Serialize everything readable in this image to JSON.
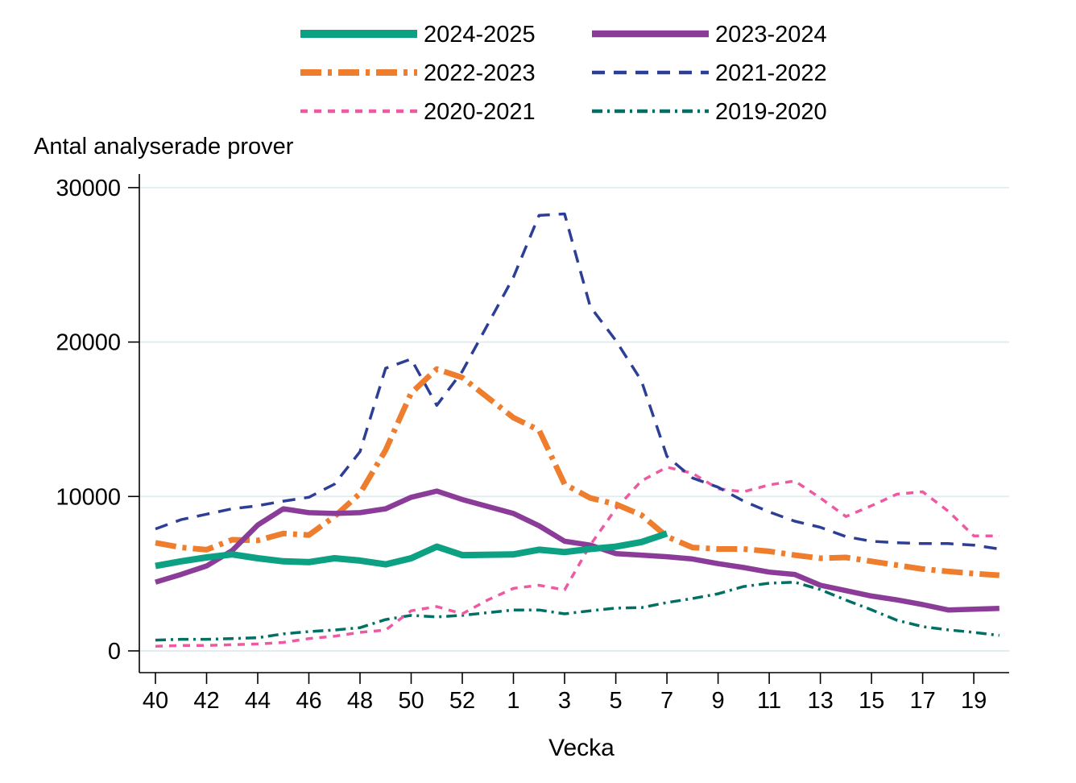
{
  "chart_data": {
    "type": "line",
    "title": "Antal analyserade prover",
    "xlabel": "Vecka",
    "ylim": [
      0,
      30000
    ],
    "yticks": [
      0,
      10000,
      20000,
      30000
    ],
    "grid": "horizontal",
    "legend_position": "top",
    "x_weeks": [
      "40",
      "41",
      "42",
      "43",
      "44",
      "45",
      "46",
      "47",
      "48",
      "49",
      "50",
      "51",
      "52",
      "53",
      "1",
      "2",
      "3",
      "4",
      "5",
      "6",
      "7",
      "8",
      "9",
      "10",
      "11",
      "12",
      "13",
      "14",
      "15",
      "16",
      "17",
      "18",
      "19",
      "20"
    ],
    "xticks": [
      "40",
      "42",
      "44",
      "46",
      "48",
      "50",
      "52",
      "1",
      "3",
      "5",
      "7",
      "9",
      "11",
      "13",
      "15",
      "17",
      "19"
    ],
    "series": [
      {
        "name": "2024-2025",
        "color": "#0ca183",
        "style": "solid",
        "width": 8,
        "values": [
          5500,
          5800,
          6050,
          6250,
          6000,
          5800,
          5750,
          6000,
          5850,
          5600,
          6000,
          6750,
          6200,
          null,
          6250,
          6550,
          6400,
          6600,
          6750,
          7050,
          7600,
          null,
          null,
          null,
          null,
          null,
          null,
          null,
          null,
          null,
          null,
          null,
          null,
          null
        ]
      },
      {
        "name": "2023-2024",
        "color": "#8a3c98",
        "style": "solid",
        "width": 6.5,
        "values": [
          4450,
          4950,
          5500,
          6500,
          8150,
          9200,
          8950,
          8900,
          8950,
          9200,
          9950,
          10350,
          9800,
          null,
          8900,
          8100,
          7100,
          6850,
          6300,
          6200,
          6100,
          5950,
          5650,
          5400,
          5100,
          4950,
          4250,
          3900,
          3550,
          3300,
          3000,
          2650,
          2700,
          2750
        ]
      },
      {
        "name": "2022-2023",
        "color": "#ee7d2d",
        "style": "dash-dot",
        "width": 7,
        "values": [
          7000,
          6700,
          6550,
          7200,
          7150,
          7600,
          7500,
          8700,
          10200,
          13000,
          16700,
          18250,
          17700,
          null,
          15100,
          14300,
          10800,
          9900,
          9500,
          8800,
          7400,
          6700,
          6600,
          6600,
          6450,
          6200,
          6000,
          6050,
          5800,
          5550,
          5300,
          5150,
          5000,
          4900
        ]
      },
      {
        "name": "2021-2022",
        "color": "#2d3e96",
        "style": "dash",
        "width": 3.5,
        "values": [
          7900,
          8500,
          8850,
          9200,
          9400,
          9700,
          9950,
          10800,
          12900,
          18300,
          18900,
          15900,
          18100,
          null,
          24200,
          28200,
          28300,
          22300,
          20100,
          17500,
          12600,
          11200,
          10600,
          9700,
          9000,
          8400,
          8000,
          7400,
          7100,
          7000,
          6950,
          6950,
          6850,
          6600
        ]
      },
      {
        "name": "2020-2021",
        "color": "#ee5aa1",
        "style": "short-dash",
        "width": 3.5,
        "values": [
          300,
          350,
          350,
          400,
          450,
          550,
          800,
          950,
          1200,
          1350,
          2600,
          2870,
          2400,
          3300,
          4050,
          4250,
          3950,
          6850,
          9200,
          11000,
          11900,
          11500,
          10500,
          10300,
          10750,
          11000,
          9900,
          8700,
          9400,
          10150,
          10300,
          9050,
          7450,
          7450
        ]
      },
      {
        "name": "2019-2020",
        "color": "#007065",
        "style": "dash-dot-small",
        "width": 3.5,
        "values": [
          700,
          750,
          750,
          800,
          850,
          1100,
          1250,
          1350,
          1500,
          2030,
          2300,
          2200,
          2300,
          null,
          2650,
          2650,
          2400,
          2600,
          2770,
          2800,
          3130,
          3390,
          3700,
          4170,
          4380,
          4450,
          3970,
          3290,
          2660,
          1980,
          1570,
          1360,
          1200,
          1000
        ]
      }
    ]
  }
}
